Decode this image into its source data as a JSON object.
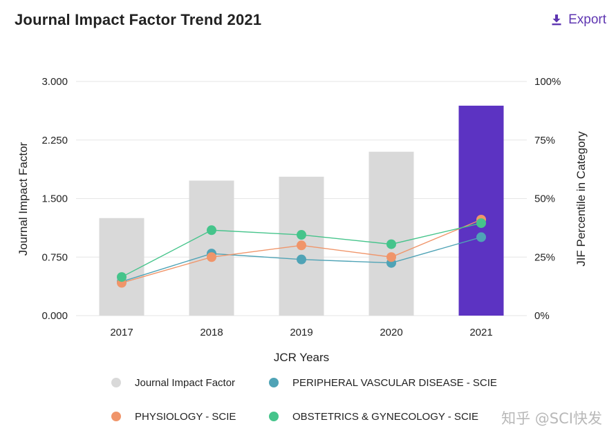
{
  "header": {
    "title": "Journal Impact Factor Trend 2021",
    "export_label": "Export"
  },
  "watermark": "知乎 @SCI快发",
  "colors": {
    "bar": "#d9d9d9",
    "bar_highlight": "#5c33c2",
    "physiology": "#f0956a",
    "peripheral": "#4fa3b6",
    "obstetrics": "#45c48b",
    "accent": "#5e35b1"
  },
  "chart_data": {
    "type": "bar",
    "title": "Journal Impact Factor Trend 2021",
    "xlabel": "JCR Years",
    "ylabel": "Journal Impact Factor",
    "y2label": "JIF Percentile in Category",
    "categories": [
      "2017",
      "2018",
      "2019",
      "2020",
      "2021"
    ],
    "ylim": [
      0,
      3
    ],
    "y2lim": [
      0,
      100
    ],
    "y_ticks": [
      "0.000",
      "0.750",
      "1.500",
      "2.250",
      "3.000"
    ],
    "y2_ticks": [
      "0%",
      "25%",
      "50%",
      "75%",
      "100%"
    ],
    "grid": true,
    "bars": {
      "name": "Journal Impact Factor",
      "values": [
        1.25,
        1.73,
        1.78,
        2.1,
        2.69
      ],
      "highlight_index": 4
    },
    "series": [
      {
        "name": "PERIPHERAL VASCULAR DISEASE - SCIE",
        "axis": "right",
        "color_key": "peripheral",
        "values": [
          14.5,
          26.5,
          24,
          22.5,
          33.5
        ]
      },
      {
        "name": "PHYSIOLOGY - SCIE",
        "axis": "right",
        "color_key": "physiology",
        "values": [
          14,
          25,
          30,
          25,
          41
        ]
      },
      {
        "name": "OBSTETRICS & GYNECOLOGY - SCIE",
        "axis": "right",
        "color_key": "obstetrics",
        "values": [
          16.5,
          36.5,
          34.5,
          30.5,
          39.5
        ]
      }
    ],
    "legend": [
      {
        "label": "Journal Impact Factor",
        "color_key": "bar"
      },
      {
        "label": "PERIPHERAL VASCULAR DISEASE - SCIE",
        "color_key": "peripheral"
      },
      {
        "label": "PHYSIOLOGY - SCIE",
        "color_key": "physiology"
      },
      {
        "label": "OBSTETRICS & GYNECOLOGY - SCIE",
        "color_key": "obstetrics"
      }
    ],
    "legend_placement": "bottom"
  }
}
